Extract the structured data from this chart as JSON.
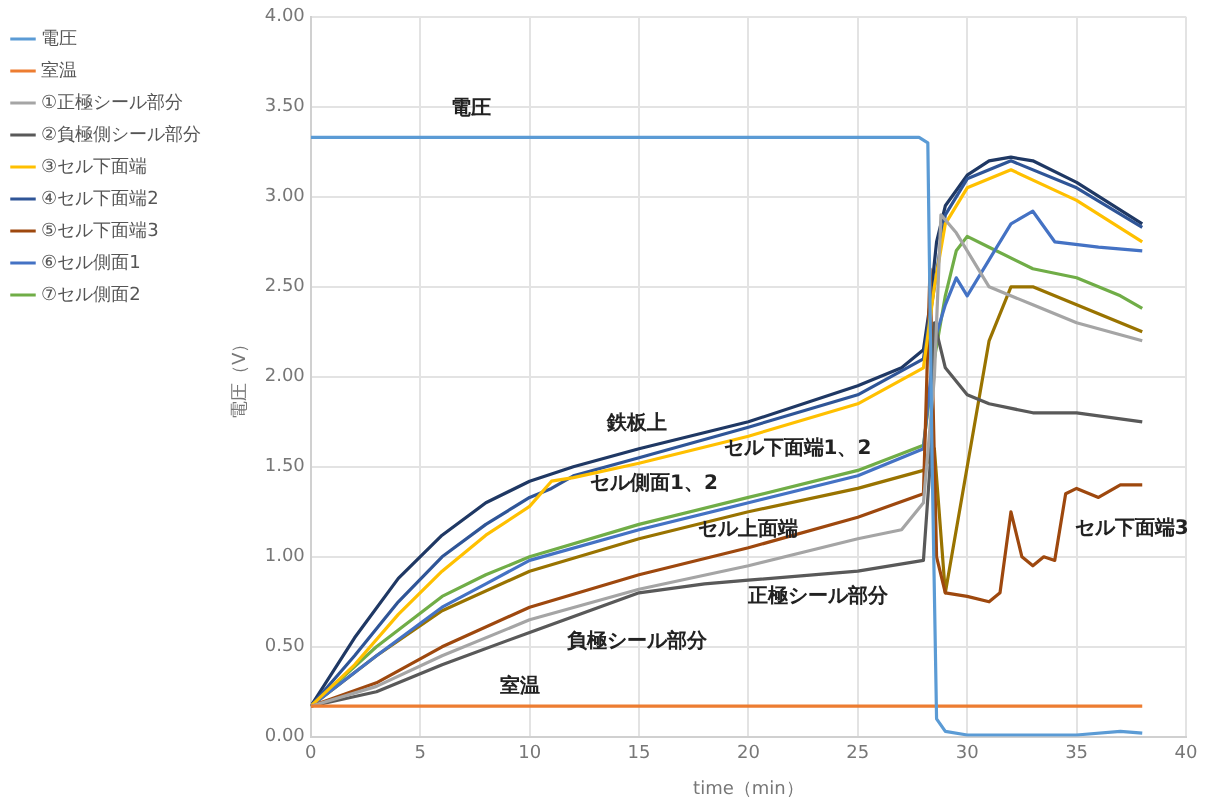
{
  "chart_data": {
    "type": "line",
    "xlabel": "time（min）",
    "ylabel": "電圧（V）",
    "xlim": [
      0,
      40
    ],
    "xticks": [
      0,
      5,
      10,
      15,
      20,
      25,
      30,
      35,
      40
    ],
    "ylim": [
      0,
      4
    ],
    "yticks": [
      {
        "value": 0,
        "label": "0.00"
      },
      {
        "value": 0.5,
        "label": "0.50"
      },
      {
        "value": 1,
        "label": "1.00"
      },
      {
        "value": 1.5,
        "label": "1.50"
      },
      {
        "value": 2,
        "label": "2.00"
      },
      {
        "value": 2.5,
        "label": "2.50"
      },
      {
        "value": 3,
        "label": "3.00"
      },
      {
        "value": 3.5,
        "label": "3.50"
      },
      {
        "value": 4,
        "label": "4.00"
      }
    ],
    "grid": true,
    "legend": "left",
    "marker": "none",
    "line_style": "solid",
    "series": [
      {
        "name": "電圧",
        "color": "#5b9bd5",
        "x": [
          0,
          27.8,
          28.2,
          28.4,
          28.6,
          29,
          30,
          35,
          37,
          38
        ],
        "values": [
          3.33,
          3.33,
          3.3,
          1.5,
          0.1,
          0.03,
          0.01,
          0.01,
          0.03,
          0.02
        ]
      },
      {
        "name": "室温",
        "color": "#ed7d31",
        "x": [
          0,
          10,
          20,
          30,
          38
        ],
        "values": [
          0.17,
          0.17,
          0.17,
          0.17,
          0.17
        ]
      },
      {
        "name": "①正極シール部分",
        "color": "#a5a5a5",
        "x": [
          0,
          3,
          6,
          10,
          15,
          20,
          25,
          27,
          28,
          28.5,
          28.8,
          29.5,
          31,
          33,
          35,
          38
        ],
        "values": [
          0.17,
          0.28,
          0.45,
          0.65,
          0.82,
          0.95,
          1.1,
          1.15,
          1.3,
          2.0,
          2.9,
          2.8,
          2.5,
          2.4,
          2.3,
          2.2
        ]
      },
      {
        "name": "②負極側シール部分",
        "color": "#595959",
        "x": [
          0,
          3,
          6,
          10,
          15,
          18,
          20,
          25,
          28,
          28.3,
          28.5,
          29,
          30,
          31,
          33,
          35,
          38
        ],
        "values": [
          0.17,
          0.25,
          0.4,
          0.58,
          0.8,
          0.85,
          0.87,
          0.92,
          0.98,
          1.5,
          2.3,
          2.05,
          1.9,
          1.85,
          1.8,
          1.8,
          1.75
        ]
      },
      {
        "name": "③セル下面端",
        "color": "#ffc000",
        "x": [
          0,
          2,
          4,
          6,
          8,
          10,
          11,
          12,
          15,
          20,
          25,
          28,
          28.5,
          29,
          30,
          32,
          35,
          38
        ],
        "values": [
          0.17,
          0.4,
          0.68,
          0.92,
          1.12,
          1.28,
          1.42,
          1.44,
          1.52,
          1.67,
          1.85,
          2.05,
          2.5,
          2.85,
          3.05,
          3.15,
          2.98,
          2.75
        ]
      },
      {
        "name": "④セル下面端2",
        "color": "#2f5597",
        "x": [
          0,
          2,
          4,
          6,
          8,
          10,
          11,
          12,
          15,
          20,
          25,
          28,
          28.5,
          29,
          30,
          32,
          35,
          38
        ],
        "values": [
          0.17,
          0.45,
          0.75,
          1.0,
          1.18,
          1.33,
          1.38,
          1.45,
          1.55,
          1.72,
          1.9,
          2.1,
          2.5,
          2.9,
          3.1,
          3.2,
          3.05,
          2.83
        ]
      },
      {
        "name": "⑤セル下面端3",
        "color": "#9e480e",
        "x": [
          0,
          3,
          6,
          10,
          15,
          20,
          25,
          28,
          28.3,
          28.6,
          29,
          30,
          31,
          31.5,
          32,
          32.5,
          33,
          33.5,
          34,
          34.5,
          35,
          36,
          37,
          38
        ],
        "values": [
          0.17,
          0.3,
          0.5,
          0.72,
          0.9,
          1.05,
          1.22,
          1.35,
          2.6,
          1.0,
          0.8,
          0.78,
          0.75,
          0.8,
          1.25,
          1.0,
          0.95,
          1.0,
          0.98,
          1.35,
          1.38,
          1.33,
          1.4,
          1.4
        ]
      },
      {
        "name": "⑥セル側面1",
        "color": "#4472c4",
        "x": [
          0,
          3,
          6,
          8,
          10,
          15,
          20,
          25,
          28,
          28.5,
          29,
          29.5,
          30,
          31,
          32,
          33,
          34,
          36,
          38
        ],
        "values": [
          0.17,
          0.45,
          0.72,
          0.85,
          0.98,
          1.15,
          1.3,
          1.45,
          1.6,
          2.2,
          2.4,
          2.55,
          2.45,
          2.65,
          2.85,
          2.92,
          2.75,
          2.72,
          2.7
        ]
      },
      {
        "name": "⑦セル側面2",
        "color": "#70ad47",
        "x": [
          0,
          3,
          6,
          8,
          10,
          15,
          20,
          25,
          28,
          28.5,
          29,
          29.5,
          30,
          31,
          33,
          35,
          37,
          38
        ],
        "values": [
          0.17,
          0.5,
          0.78,
          0.9,
          1.0,
          1.18,
          1.33,
          1.48,
          1.62,
          2.1,
          2.45,
          2.7,
          2.78,
          2.72,
          2.6,
          2.55,
          2.45,
          2.38
        ]
      },
      {
        "color": "#1f3864",
        "x": [
          0,
          2,
          4,
          6,
          8,
          10,
          12,
          15,
          20,
          25,
          27,
          28,
          28.3,
          28.6,
          29,
          30,
          31,
          32,
          33,
          35,
          38
        ],
        "values": [
          0.17,
          0.55,
          0.88,
          1.12,
          1.3,
          1.42,
          1.5,
          1.6,
          1.75,
          1.95,
          2.05,
          2.15,
          2.4,
          2.75,
          2.95,
          3.12,
          3.2,
          3.22,
          3.2,
          3.08,
          2.85
        ]
      },
      {
        "color": "#997300",
        "x": [
          0,
          3,
          6,
          10,
          15,
          20,
          25,
          28,
          28.5,
          29,
          30,
          31,
          32,
          33,
          35,
          38
        ],
        "values": [
          0.17,
          0.45,
          0.7,
          0.92,
          1.1,
          1.25,
          1.38,
          1.48,
          1.6,
          0.8,
          1.5,
          2.2,
          2.5,
          2.5,
          2.4,
          2.25
        ]
      }
    ],
    "annotations": [
      "電圧",
      "鉄板上",
      "セル下面端1、2",
      "セル側面1、2",
      "セル上面端",
      "正極シール部分",
      "負極シール部分",
      "室温",
      "セル下面端3"
    ]
  }
}
